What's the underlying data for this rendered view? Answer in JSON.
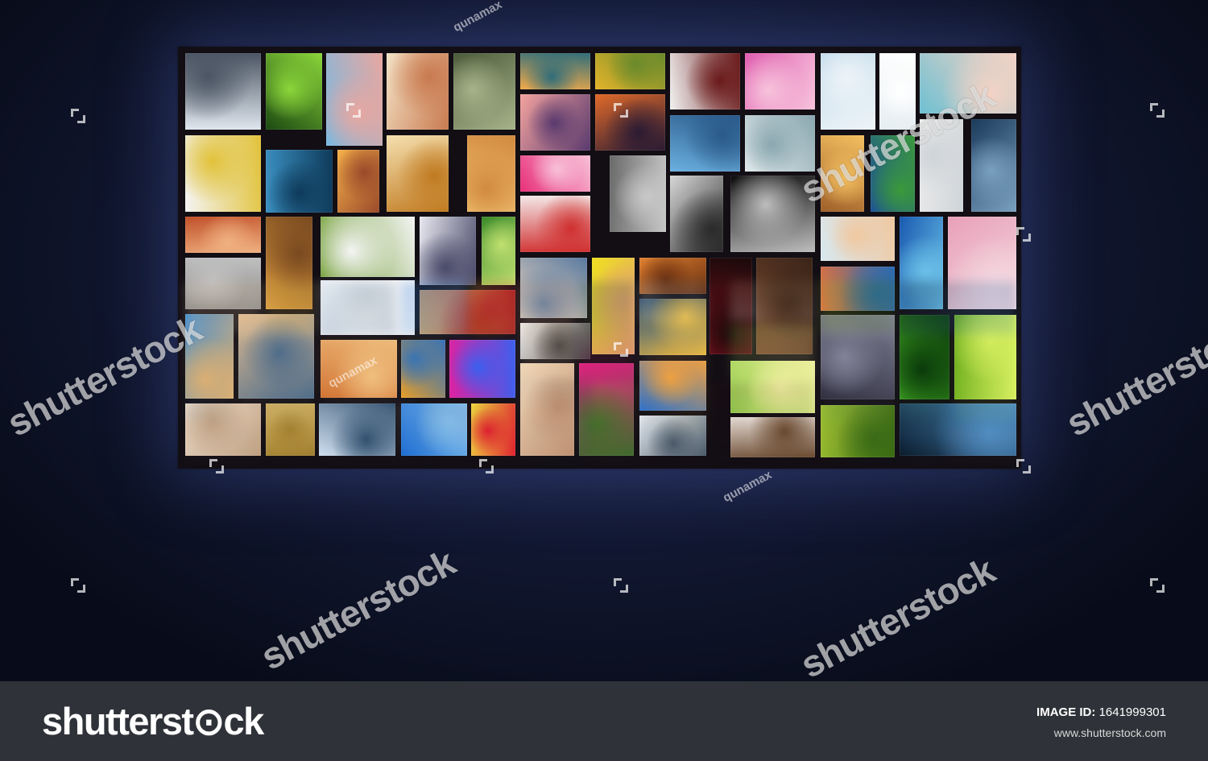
{
  "scene": {
    "background_color": "#10162e",
    "wall_frame_color": "#120e14"
  },
  "watermark": {
    "brand_text": "shutterstock",
    "contributor": "qunamax"
  },
  "footer": {
    "logo_text": "shutterst⊙ck",
    "image_id_label": "IMAGE ID:",
    "image_id_value": "1641999301",
    "site_url": "www.shutterstock.com",
    "background_color": "#2f3238"
  },
  "tiles": [
    {
      "subject": "woman in hat on snowy beach",
      "colors": [
        "#dfe6ee",
        "#4b5563"
      ]
    },
    {
      "subject": "green leaf macro",
      "colors": [
        "#1c4a12",
        "#8cd63a"
      ]
    },
    {
      "subject": "blue pink gradient sky",
      "colors": [
        "#7ab8e0",
        "#e9a7a0"
      ]
    },
    {
      "subject": "group of friends outdoors",
      "colors": [
        "#f3e2c6",
        "#c97a4f"
      ]
    },
    {
      "subject": "forest path",
      "colors": [
        "#4b5a3a",
        "#a7b48a"
      ]
    },
    {
      "subject": "mountain lake sunrise",
      "colors": [
        "#f0a94a",
        "#2f6d7a"
      ]
    },
    {
      "subject": "yellow flowers field",
      "colors": [
        "#e3b32a",
        "#6a8a2b"
      ]
    },
    {
      "subject": "glass of wine on white",
      "colors": [
        "#f2f2f2",
        "#6a1a1a"
      ]
    },
    {
      "subject": "pink cup of tea",
      "colors": [
        "#e05fb0",
        "#f7c3dc"
      ]
    },
    {
      "subject": "winter seascape",
      "colors": [
        "#c5dcec",
        "#eef4f8"
      ]
    },
    {
      "subject": "white mist",
      "colors": [
        "#e6eef2",
        "#ffffff"
      ]
    },
    {
      "subject": "two girls smiling",
      "colors": [
        "#6ec0d2",
        "#f5d3c5"
      ]
    },
    {
      "subject": "spoon with food",
      "colors": [
        "#f4f4f4",
        "#e1c23a"
      ]
    },
    {
      "subject": "sunset over sea pink",
      "colors": [
        "#f4a39f",
        "#5a3a6e"
      ]
    },
    {
      "subject": "sunset horizon",
      "colors": [
        "#e06a2a",
        "#2b1b33"
      ]
    },
    {
      "subject": "frozen lake person",
      "colors": [
        "#6ab0e0",
        "#2a5a8a"
      ]
    },
    {
      "subject": "blonde woman portrait",
      "colors": [
        "#dfe8ea",
        "#8aa7b0"
      ]
    },
    {
      "subject": "teal water texture",
      "colors": [
        "#3a8fc0",
        "#0e3a5a"
      ]
    },
    {
      "subject": "orange dusk",
      "colors": [
        "#f6b24a",
        "#9a4a2a"
      ]
    },
    {
      "subject": "glass of tea",
      "colors": [
        "#f5e0b0",
        "#c07a20"
      ]
    },
    {
      "subject": "ginger cat",
      "colors": [
        "#f0c070",
        "#d28a40"
      ]
    },
    {
      "subject": "pink glitter",
      "colors": [
        "#e8307a",
        "#f8c0d8"
      ]
    },
    {
      "subject": "gray horse grazing",
      "colors": [
        "#6a6a6a",
        "#c8c8c8"
      ]
    },
    {
      "subject": "zebra legs",
      "colors": [
        "#d8d8d8",
        "#2a2a2a"
      ]
    },
    {
      "subject": "full moon night",
      "colors": [
        "#0a0a0a",
        "#bdbdbd"
      ]
    },
    {
      "subject": "golden bokeh",
      "colors": [
        "#a0602a",
        "#f4c060"
      ]
    },
    {
      "subject": "blue sea green island",
      "colors": [
        "#1a4aa0",
        "#3a9a3a"
      ]
    },
    {
      "subject": "white room wall",
      "colors": [
        "#ededed",
        "#cfd4d8"
      ]
    },
    {
      "subject": "rain on window",
      "colors": [
        "#1a3a5a",
        "#7aa0c0"
      ]
    },
    {
      "subject": "crab dinner",
      "colors": [
        "#c0502a",
        "#f0b080"
      ]
    },
    {
      "subject": "toy truck autumn",
      "colors": [
        "#e0a040",
        "#7a4a20"
      ]
    },
    {
      "subject": "white rabbit grass",
      "colors": [
        "#6a9a2a",
        "#f4f4f4"
      ]
    },
    {
      "subject": "hand writing notes",
      "colors": [
        "#e8e8f0",
        "#4a4a6a"
      ]
    },
    {
      "subject": "green bokeh sprout",
      "colors": [
        "#3a8a2a",
        "#c0e070"
      ]
    },
    {
      "subject": "table with glasses",
      "colors": [
        "#f4e8e8",
        "#d03030"
      ]
    },
    {
      "subject": "friends at bar",
      "colors": [
        "#f0d8c0",
        "#5a7aa0"
      ]
    },
    {
      "subject": "friends on beach",
      "colors": [
        "#d8e8f0",
        "#f0c8a0"
      ]
    },
    {
      "subject": "blue ocean vertical",
      "colors": [
        "#1a5ab0",
        "#6ac0e8"
      ]
    },
    {
      "subject": "pink roses in vase",
      "colors": [
        "#e8a0b8",
        "#f4d8e0"
      ]
    },
    {
      "subject": "stone road",
      "colors": [
        "#8a8a8a",
        "#c0c0c0"
      ]
    },
    {
      "subject": "white minimal",
      "colors": [
        "#dfe6ee",
        "#f8f8f8"
      ]
    },
    {
      "subject": "red plane on sand",
      "colors": [
        "#c0a070",
        "#a02020"
      ]
    },
    {
      "subject": "yellow hand",
      "colors": [
        "#f0e020",
        "#e0a070"
      ]
    },
    {
      "subject": "firewood macro",
      "colors": [
        "#e08030",
        "#6a3010"
      ]
    },
    {
      "subject": "red wine bottle",
      "colors": [
        "#8a1020",
        "#1a0a0a"
      ]
    },
    {
      "subject": "brown texture",
      "colors": [
        "#7a4a30",
        "#3a2418"
      ]
    },
    {
      "subject": "coral reef",
      "colors": [
        "#e07040",
        "#2a6ab0"
      ]
    },
    {
      "subject": "house at sunset",
      "colors": [
        "#3a8ad0",
        "#e0b070"
      ]
    },
    {
      "subject": "girl in car window",
      "colors": [
        "#e8c090",
        "#4a6a8a"
      ]
    },
    {
      "subject": "grilled food",
      "colors": [
        "#d07030",
        "#f0c080"
      ]
    },
    {
      "subject": "autumn tree sunburst",
      "colors": [
        "#f0a020",
        "#2a70c0"
      ]
    },
    {
      "subject": "disco lights",
      "colors": [
        "#e020a0",
        "#3a60f0"
      ]
    },
    {
      "subject": "blonde woman white",
      "colors": [
        "#f0f0f0",
        "#3a3a3a"
      ]
    },
    {
      "subject": "lantern market",
      "colors": [
        "#2a4a6a",
        "#f0c040"
      ]
    },
    {
      "subject": "industrial machine",
      "colors": [
        "#2a2a3a",
        "#8a8aa0"
      ]
    },
    {
      "subject": "green leaf curve",
      "colors": [
        "#3a9a20",
        "#0a3a0a"
      ]
    },
    {
      "subject": "ladybug on leaf",
      "colors": [
        "#70b020",
        "#d8f060"
      ]
    },
    {
      "subject": "woman sitting yoga",
      "colors": [
        "#f0d8b8",
        "#c09070"
      ]
    },
    {
      "subject": "pink flowers",
      "colors": [
        "#e02080",
        "#3a6a2a"
      ]
    },
    {
      "subject": "glass ball sky",
      "colors": [
        "#2a70d0",
        "#f0a040"
      ]
    },
    {
      "subject": "palm leaves from below",
      "colors": [
        "#9ad050",
        "#f0f0a0"
      ]
    },
    {
      "subject": "green moss",
      "colors": [
        "#9ac030",
        "#3a6a10"
      ]
    },
    {
      "subject": "kitten",
      "colors": [
        "#f0e0d0",
        "#c0a080"
      ]
    },
    {
      "subject": "wheat field",
      "colors": [
        "#d0b060",
        "#a08030"
      ]
    },
    {
      "subject": "woman at sea",
      "colors": [
        "#d0e0f0",
        "#2a4a6a"
      ]
    },
    {
      "subject": "airplane in blue sky",
      "colors": [
        "#1a6ad0",
        "#80c0f0"
      ]
    },
    {
      "subject": "red flowers yellow",
      "colors": [
        "#f0e040",
        "#e02030"
      ]
    },
    {
      "subject": "snowy forest road",
      "colors": [
        "#e8eef4",
        "#4a5a6a"
      ]
    },
    {
      "subject": "goat portrait",
      "colors": [
        "#f0e8e0",
        "#6a4a30"
      ]
    },
    {
      "subject": "city night lights",
      "colors": [
        "#0a1a2a",
        "#4a8ac0"
      ]
    }
  ]
}
